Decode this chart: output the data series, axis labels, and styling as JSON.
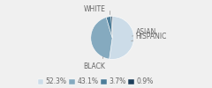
{
  "labels": [
    "WHITE",
    "BLACK",
    "HISPANIC",
    "ASIAN"
  ],
  "values": [
    52.3,
    43.1,
    3.7,
    0.9
  ],
  "colors": [
    "#ccdce8",
    "#85aabf",
    "#4d7d99",
    "#1e3f5a"
  ],
  "legend_labels": [
    "52.3%",
    "43.1%",
    "3.7%",
    "0.9%"
  ],
  "background_color": "#f0f0f0",
  "text_color": "#666666",
  "fontsize": 5.5
}
